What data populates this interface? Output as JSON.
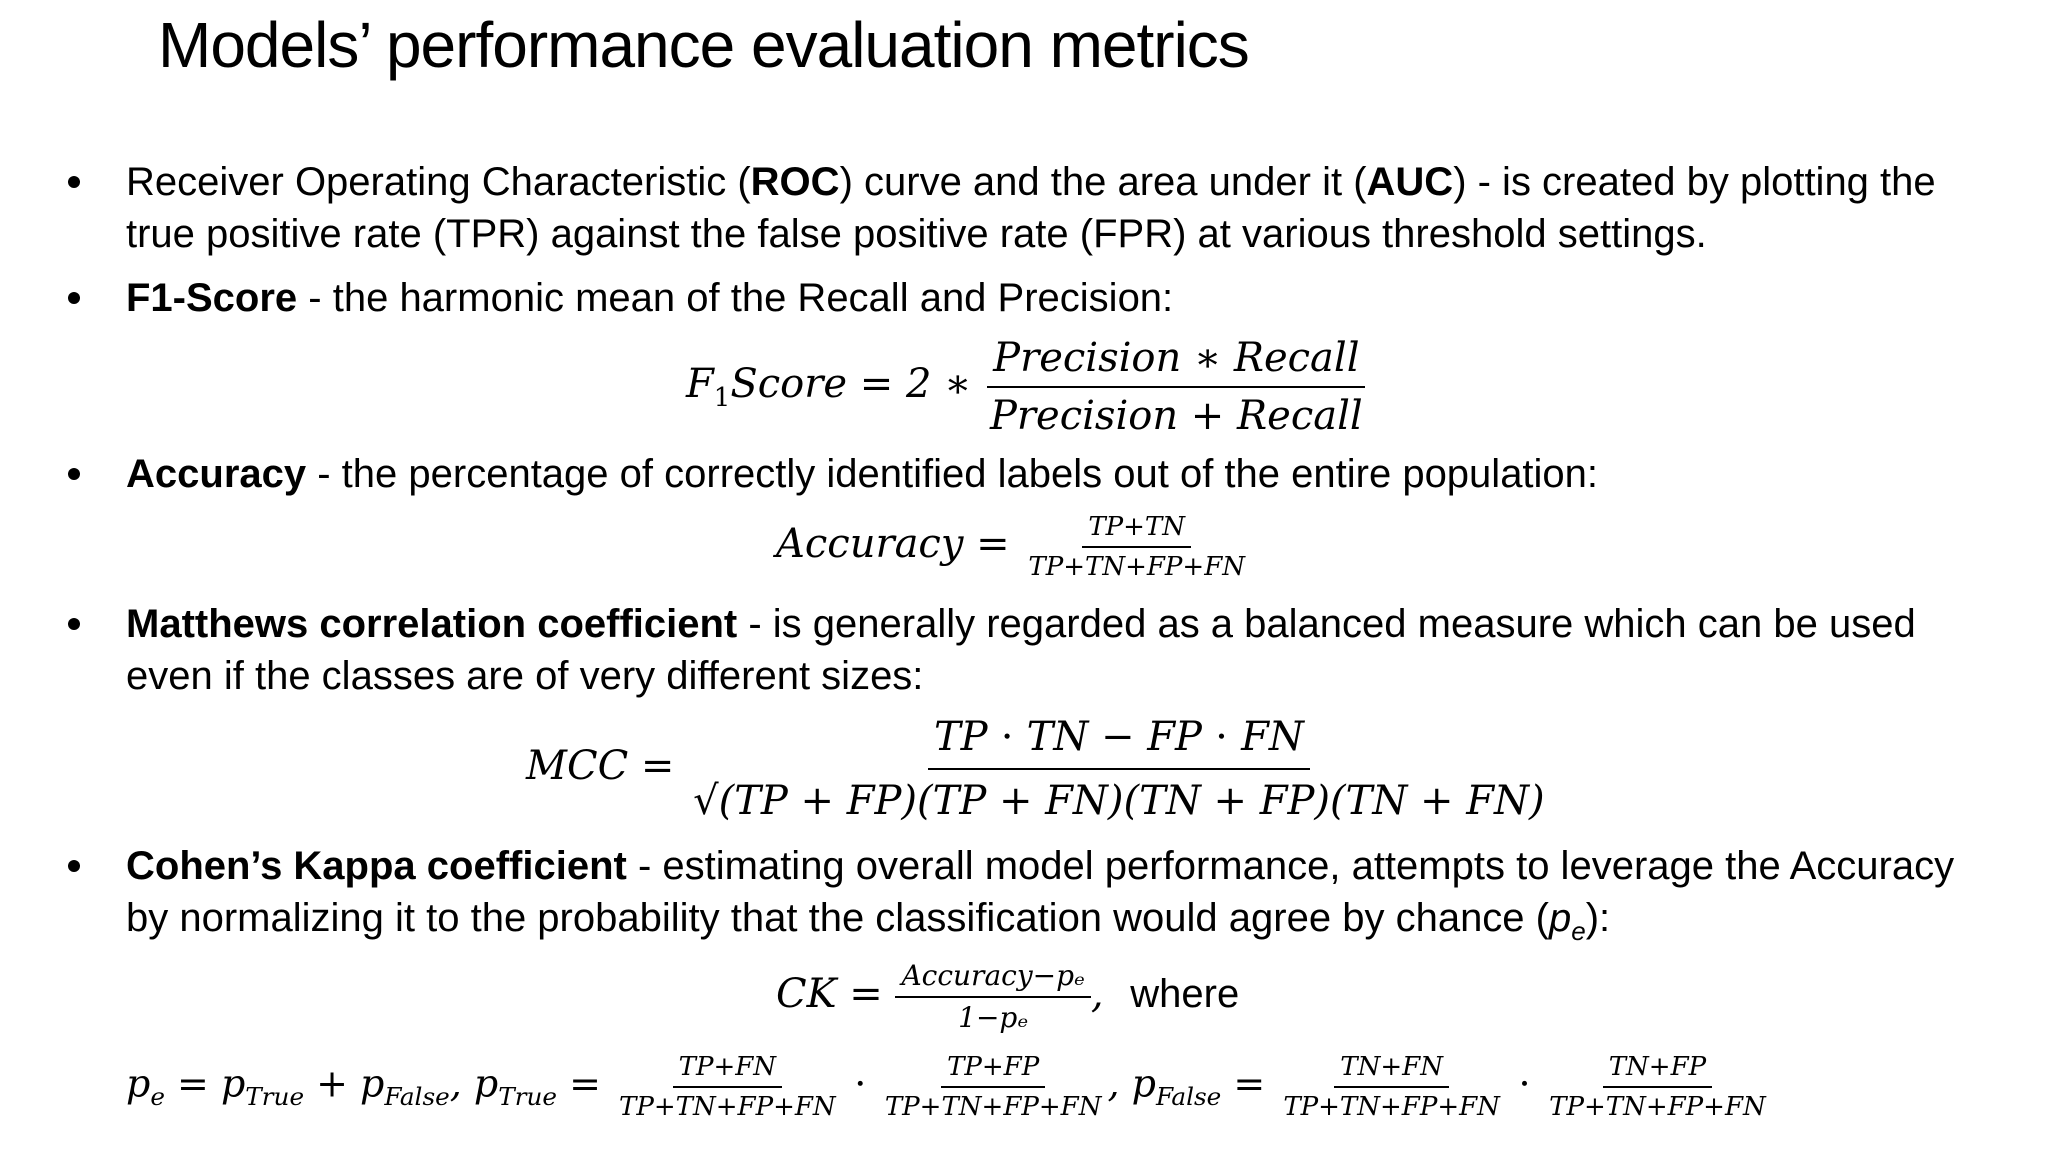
{
  "title": "Models’ performance evaluation metrics",
  "bullets": {
    "roc": {
      "pre": "Receiver Operating Characteristic (",
      "term1": "ROC",
      "mid": ") curve and the area under it (",
      "term2": "AUC",
      "post": ") -  is created by plotting the true positive rate (TPR) against the false positive rate (FPR) at various threshold settings."
    },
    "f1": {
      "term": "F1-Score",
      "text": " - the harmonic mean of the Recall and Precision:"
    },
    "accuracy": {
      "term": "Accuracy",
      "text": " - the percentage of correctly identified labels out of the entire population:"
    },
    "mcc": {
      "term": "Matthews correlation coefficient",
      "text": " - is generally regarded as a balanced measure which can be used even if the classes are of very different sizes:"
    },
    "kappa": {
      "term": "Cohen’s Kappa coefficient",
      "text": " - estimating overall model performance, attempts to leverage the Accuracy by normalizing it to the probability that the classification would agree by chance (",
      "p": "p",
      "e": "e",
      "close": "):"
    }
  },
  "formulas": {
    "f1": {
      "lhs_f": "F",
      "lhs_sub": "1",
      "lhs_rest": "Score = 2  ∗",
      "num": "Precision  ∗ Recall",
      "den": "Precision + Recall"
    },
    "accuracy": {
      "lhs": "Accuracy =",
      "num": "TP+TN",
      "den": "TP+TN+FP+FN"
    },
    "mcc": {
      "lhs": "MCC =",
      "num": "TP ⋅ TN − FP ⋅ FN",
      "den": "√(TP + FP)(TP + FN)(TN + FP)(TN + FN)"
    },
    "ck": {
      "lhs": "CK =",
      "num": "Accuracy−pₑ",
      "den": "1−pₑ",
      "comma": ",",
      "where": "where"
    },
    "pe": {
      "p1": "p",
      "p1sub": "e",
      "eq1": " = p",
      "t1sub": "True",
      "plus": " + p",
      "f1sub": "False",
      "c1": ", p",
      "t2sub": "True",
      "eq2": " =",
      "f1num": "TP+FN",
      "f1den": "TP+TN+FP+FN",
      "dot1": "⋅",
      "f2num": "TP+FP",
      "f2den": "TP+TN+FP+FN",
      "c2": ", p",
      "f3sub": "False",
      "eq3": " =",
      "f3num": "TN+FN",
      "f3den": "TP+TN+FP+FN",
      "dot2": "⋅",
      "f4num": "TN+FP",
      "f4den": "TP+TN+FP+FN"
    }
  }
}
